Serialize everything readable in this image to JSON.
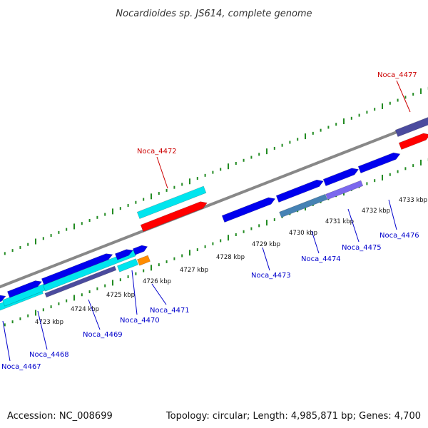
{
  "title": "Nocardioides sp. JS614, complete genome",
  "footer": {
    "accession": "Accession: NC_008699",
    "summary": "Topology: circular; Length: 4,985,871 bp; Genes: 4,700"
  },
  "colors": {
    "backbone": "#888888",
    "tick": "#228B22",
    "label_blue": "#0000CC",
    "label_red": "#CC0000",
    "cyan": "#00E5EE",
    "red": "#FF0000",
    "blue": "#0000EE",
    "slate": "#4B4B9E",
    "purple": "#7B68EE",
    "steel": "#4682B4",
    "orange": "#FF8C00"
  },
  "scale_labels": [
    "4723 kbp",
    "4724 kbp",
    "4725 kbp",
    "4726 kbp",
    "4727 kbp",
    "4728 kbp",
    "4729 kbp",
    "4730 kbp",
    "4731 kbp",
    "4732 kbp",
    "4733 kbp"
  ],
  "gene_labels": [
    {
      "text": "Noca_4467",
      "color": "label_blue"
    },
    {
      "text": "Noca_4468",
      "color": "label_blue"
    },
    {
      "text": "Noca_4469",
      "color": "label_blue"
    },
    {
      "text": "Noca_4470",
      "color": "label_blue"
    },
    {
      "text": "Noca_4471",
      "color": "label_blue"
    },
    {
      "text": "Noca_4472",
      "color": "label_red"
    },
    {
      "text": "Noca_4473",
      "color": "label_blue"
    },
    {
      "text": "Noca_4474",
      "color": "label_blue"
    },
    {
      "text": "Noca_4475",
      "color": "label_blue"
    },
    {
      "text": "Noca_4476",
      "color": "label_blue"
    },
    {
      "text": "Noca_4477",
      "color": "label_red"
    }
  ]
}
